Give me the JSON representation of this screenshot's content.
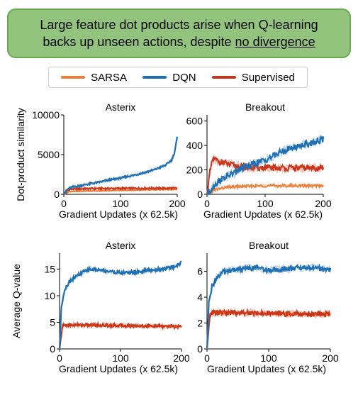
{
  "banner": {
    "line1": "Large feature dot products arise when Q-learning",
    "line2_prefix": "backs up unseen actions, despite ",
    "line2_emphasis": "no divergence"
  },
  "legend": [
    {
      "label": "SARSA",
      "color": "#ee7f3a"
    },
    {
      "label": "DQN",
      "color": "#1f6fb4"
    },
    {
      "label": "Supervised",
      "color": "#c9361a"
    }
  ],
  "chart_data": [
    {
      "type": "line",
      "title": "Asterix",
      "xlabel": "Gradient Updates (x 62.5k)",
      "ylabel": "Dot-product similarity",
      "xlim": [
        0,
        200
      ],
      "ylim": [
        0,
        10000
      ],
      "xticks": [
        0,
        100,
        200
      ],
      "yticks": [
        0,
        5000,
        10000
      ],
      "grid": false,
      "series": [
        {
          "name": "DQN",
          "x": [
            0,
            5,
            10,
            20,
            30,
            40,
            60,
            80,
            100,
            120,
            140,
            160,
            180,
            190,
            195,
            200
          ],
          "y": [
            0,
            500,
            800,
            1000,
            1100,
            1250,
            1500,
            1800,
            2050,
            2350,
            2700,
            3100,
            3700,
            4300,
            5200,
            7200
          ]
        },
        {
          "name": "SARSA",
          "x": [
            0,
            10,
            50,
            100,
            150,
            200
          ],
          "y": [
            0,
            350,
            420,
            500,
            560,
            620
          ]
        },
        {
          "name": "Supervised",
          "x": [
            0,
            10,
            50,
            100,
            150,
            200
          ],
          "y": [
            0,
            650,
            720,
            740,
            760,
            770
          ]
        }
      ]
    },
    {
      "type": "line",
      "title": "Breakout",
      "xlabel": "Gradient Updates (x 62.5k)",
      "ylabel": "",
      "xlim": [
        0,
        200
      ],
      "ylim": [
        0,
        650
      ],
      "xticks": [
        0,
        100,
        200
      ],
      "yticks": [
        0,
        200,
        400,
        600
      ],
      "grid": false,
      "series": [
        {
          "name": "DQN",
          "x": [
            0,
            10,
            20,
            40,
            60,
            80,
            100,
            120,
            140,
            160,
            180,
            190,
            200
          ],
          "y": [
            0,
            60,
            110,
            160,
            210,
            250,
            280,
            330,
            370,
            400,
            420,
            440,
            450
          ]
        },
        {
          "name": "SARSA",
          "x": [
            0,
            10,
            20,
            40,
            60,
            100,
            150,
            200
          ],
          "y": [
            0,
            30,
            45,
            60,
            65,
            70,
            70,
            70
          ]
        },
        {
          "name": "Supervised",
          "x": [
            0,
            5,
            10,
            20,
            40,
            60,
            80,
            100,
            150,
            200
          ],
          "y": [
            0,
            180,
            290,
            270,
            240,
            225,
            220,
            215,
            215,
            215
          ]
        }
      ]
    },
    {
      "type": "line",
      "title": "Asterix",
      "xlabel": "Gradient Updates (x 62.5k)",
      "ylabel": "Average Q-value",
      "xlim": [
        0,
        200
      ],
      "ylim": [
        0,
        18
      ],
      "xticks": [
        0,
        100,
        200
      ],
      "yticks": [
        0,
        5,
        10,
        15
      ],
      "grid": false,
      "series": [
        {
          "name": "DQN",
          "x": [
            0,
            3,
            8,
            15,
            25,
            40,
            50,
            70,
            100,
            130,
            150,
            180,
            195,
            200
          ],
          "y": [
            0,
            8,
            11,
            12.5,
            13.5,
            14.5,
            15,
            14.8,
            14.3,
            14.5,
            14.8,
            15.2,
            15.8,
            16.3
          ]
        },
        {
          "name": "SARSA",
          "x": [
            0,
            5,
            20,
            60,
            100,
            150,
            200
          ],
          "y": [
            0,
            4.5,
            4.5,
            4.4,
            4.3,
            4.3,
            4.2
          ]
        },
        {
          "name": "Supervised",
          "x": [
            0,
            5,
            20,
            60,
            100,
            150,
            200
          ],
          "y": [
            0,
            4.4,
            4.5,
            4.5,
            4.4,
            4.3,
            4.2
          ]
        }
      ]
    },
    {
      "type": "line",
      "title": "Breakout",
      "xlabel": "Gradient Updates (x 62.5k)",
      "ylabel": "",
      "xlim": [
        0,
        200
      ],
      "ylim": [
        0,
        7.4
      ],
      "xticks": [
        0,
        100,
        200
      ],
      "yticks": [
        0,
        2,
        4,
        6
      ],
      "grid": false,
      "series": [
        {
          "name": "DQN",
          "x": [
            0,
            3,
            8,
            15,
            25,
            40,
            60,
            80,
            100,
            130,
            160,
            190,
            200
          ],
          "y": [
            0,
            3.5,
            4.8,
            5.5,
            5.9,
            6.1,
            6.2,
            6.3,
            6.1,
            6.2,
            6.3,
            6.2,
            6.1
          ]
        },
        {
          "name": "SARSA",
          "x": [
            0,
            5,
            20,
            60,
            100,
            150,
            200
          ],
          "y": [
            0,
            2.7,
            2.8,
            2.8,
            2.75,
            2.7,
            2.65
          ]
        },
        {
          "name": "Supervised",
          "x": [
            0,
            5,
            20,
            60,
            100,
            150,
            200
          ],
          "y": [
            0,
            2.8,
            2.8,
            2.8,
            2.75,
            2.7,
            2.7
          ]
        }
      ]
    }
  ]
}
